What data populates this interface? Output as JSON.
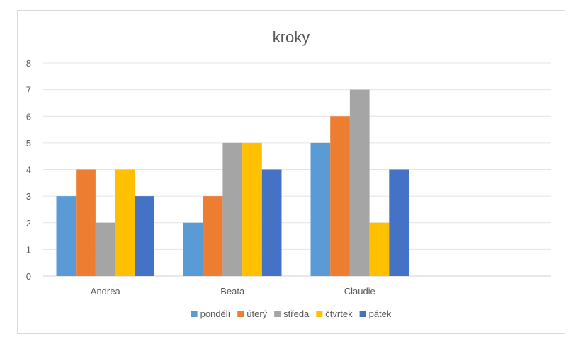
{
  "chart_data": {
    "type": "bar",
    "title": "kroky",
    "categories": [
      "Andrea",
      "Beata",
      "Claudie"
    ],
    "series": [
      {
        "name": "pondělí",
        "color": "#5b9bd5",
        "values": [
          3,
          2,
          5
        ]
      },
      {
        "name": "úterý",
        "color": "#ed7d31",
        "values": [
          4,
          3,
          6
        ]
      },
      {
        "name": "středa",
        "color": "#a5a5a5",
        "values": [
          2,
          5,
          7
        ]
      },
      {
        "name": "čtvrtek",
        "color": "#ffc000",
        "values": [
          4,
          5,
          2
        ]
      },
      {
        "name": "pátek",
        "color": "#4472c4",
        "values": [
          3,
          4,
          4
        ]
      }
    ],
    "ylim": [
      0,
      8
    ],
    "yticks": [
      0,
      1,
      2,
      3,
      4,
      5,
      6,
      7,
      8
    ],
    "grid": true,
    "legend_position": "bottom"
  }
}
